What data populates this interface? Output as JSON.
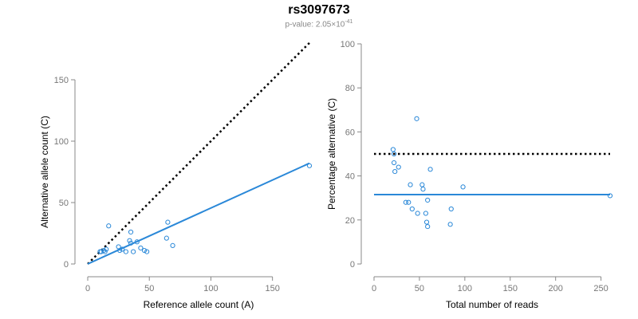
{
  "header": {
    "title": "rs3097673",
    "pvalue_prefix": "p-value: 2.05×10",
    "pvalue_exponent": "-41"
  },
  "colors": {
    "points": "#2a88d8",
    "fit_line": "#2a88d8",
    "reference_line": "#000000",
    "axis": "#888888"
  },
  "chart_data": [
    {
      "type": "scatter",
      "title": "",
      "xlabel": "Reference allele count (A)",
      "ylabel": "Alternative allele count (C)",
      "xlim": [
        0,
        180
      ],
      "ylim": [
        0,
        150
      ],
      "xticks": [
        0,
        50,
        100,
        150
      ],
      "yticks": [
        0,
        50,
        100,
        150
      ],
      "points": [
        [
          10,
          10
        ],
        [
          11,
          10
        ],
        [
          13,
          11
        ],
        [
          14,
          10
        ],
        [
          15,
          12
        ],
        [
          17,
          31
        ],
        [
          25,
          14
        ],
        [
          26,
          11
        ],
        [
          28,
          12
        ],
        [
          31,
          10
        ],
        [
          34,
          19
        ],
        [
          35,
          26
        ],
        [
          35,
          17
        ],
        [
          37,
          10
        ],
        [
          40,
          18
        ],
        [
          43,
          13
        ],
        [
          46,
          11
        ],
        [
          48,
          10
        ],
        [
          64,
          21
        ],
        [
          65,
          34
        ],
        [
          69,
          15
        ],
        [
          180,
          80
        ]
      ],
      "reference_line": {
        "style": "dotted",
        "from": [
          0,
          0
        ],
        "to": [
          180,
          180
        ]
      },
      "fit_line": {
        "style": "solid",
        "from": [
          0,
          0
        ],
        "to": [
          180,
          82
        ]
      }
    },
    {
      "type": "scatter",
      "title": "",
      "xlabel": "Total number of reads",
      "ylabel": "Percentage alternative (C)",
      "xlim": [
        0,
        260
      ],
      "ylim": [
        0,
        100
      ],
      "xticks": [
        0,
        50,
        100,
        150,
        200,
        250
      ],
      "yticks": [
        0,
        20,
        40,
        60,
        80,
        100
      ],
      "points": [
        [
          21,
          52
        ],
        [
          22,
          50
        ],
        [
          22,
          46
        ],
        [
          23,
          42
        ],
        [
          27,
          44
        ],
        [
          35,
          28
        ],
        [
          38,
          28
        ],
        [
          40,
          36
        ],
        [
          42,
          25
        ],
        [
          47,
          66
        ],
        [
          48,
          23
        ],
        [
          53,
          36
        ],
        [
          54,
          34
        ],
        [
          57,
          23
        ],
        [
          58,
          19
        ],
        [
          59,
          29
        ],
        [
          59,
          17
        ],
        [
          62,
          43
        ],
        [
          84,
          18
        ],
        [
          85,
          25
        ],
        [
          98,
          35
        ],
        [
          260,
          31
        ]
      ],
      "reference_line": {
        "style": "dotted",
        "y": 50
      },
      "fit_line": {
        "style": "solid",
        "y": 31.5
      }
    }
  ]
}
